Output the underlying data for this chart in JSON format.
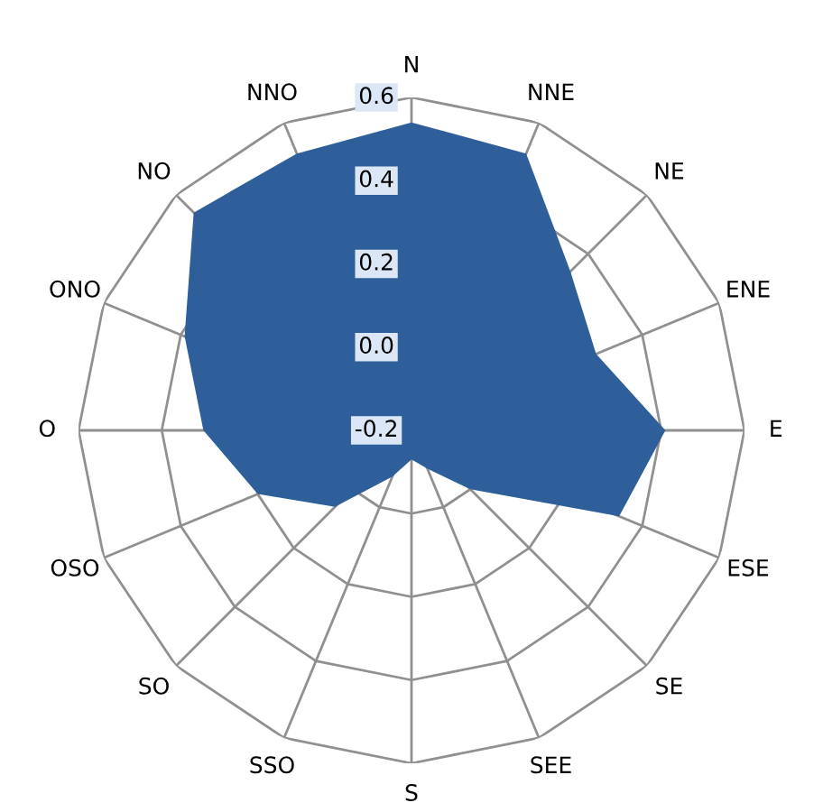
{
  "chart_data": {
    "type": "radar",
    "categories": [
      "N",
      "NNE",
      "NE",
      "ENE",
      "E",
      "ESE",
      "SE",
      "SEE",
      "S",
      "SSO",
      "SO",
      "OSO",
      "O",
      "ONO",
      "NO",
      "NNO"
    ],
    "series": [
      {
        "color": "#2e5f9a",
        "type": "area",
        "values": [
          0.54,
          0.52,
          0.34,
          0.28,
          0.41,
          0.34,
          0.0,
          -0.1,
          -0.13,
          -0.08,
          0.06,
          0.2,
          0.3,
          0.39,
          0.54,
          0.52
        ]
      }
    ],
    "ylim": [
      -0.2,
      0.6
    ],
    "yticks": [
      {
        "value": -0.2,
        "label": "-0.2"
      },
      {
        "value": 0,
        "label": "0.0"
      },
      {
        "value": 0.2,
        "label": "0.2"
      },
      {
        "value": 0.4,
        "label": "0.4"
      },
      {
        "value": 0.6,
        "label": "0.6"
      }
    ],
    "grid": true,
    "legend": false
  }
}
